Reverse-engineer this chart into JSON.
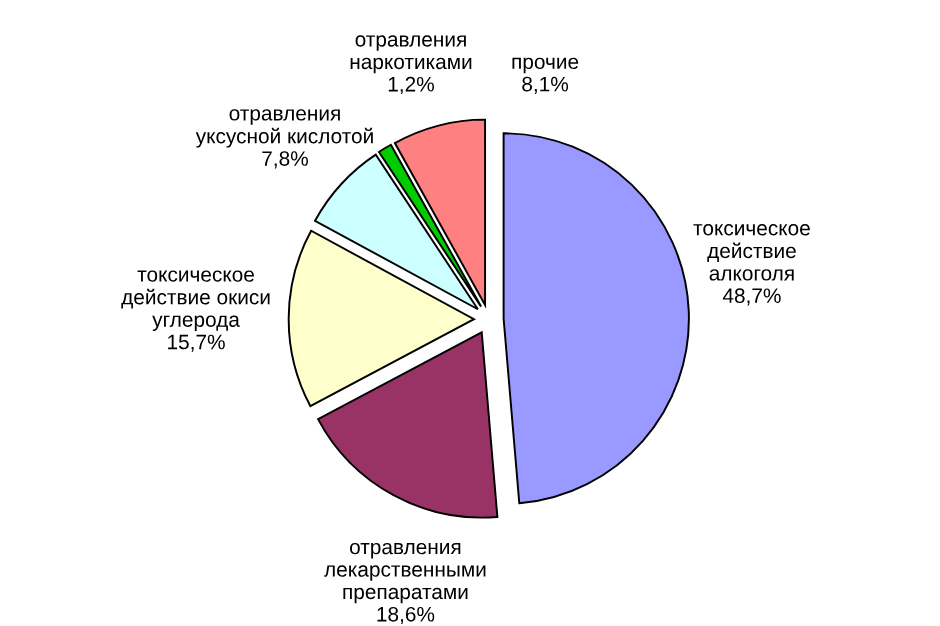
{
  "chart_data": {
    "type": "pie",
    "categories": [
      "токсическое\nдействие\nалкоголя",
      "отравления\nлекарственными\nпрепаратами",
      "токсическое\nдействие окиси\nуглерода",
      "отравления\nуксусной кислотой",
      "отравления\nнаркотиками",
      "прочие"
    ],
    "values": [
      48.7,
      18.6,
      15.7,
      7.8,
      1.2,
      8.1
    ],
    "value_labels": [
      "48,7%",
      "18,6%",
      "15,7%",
      "7,8%",
      "1,2%",
      "8,1%"
    ],
    "colors": [
      "#9999ff",
      "#993366",
      "#ffffcc",
      "#ccffff",
      "#00cc00",
      "#ff8080"
    ]
  }
}
